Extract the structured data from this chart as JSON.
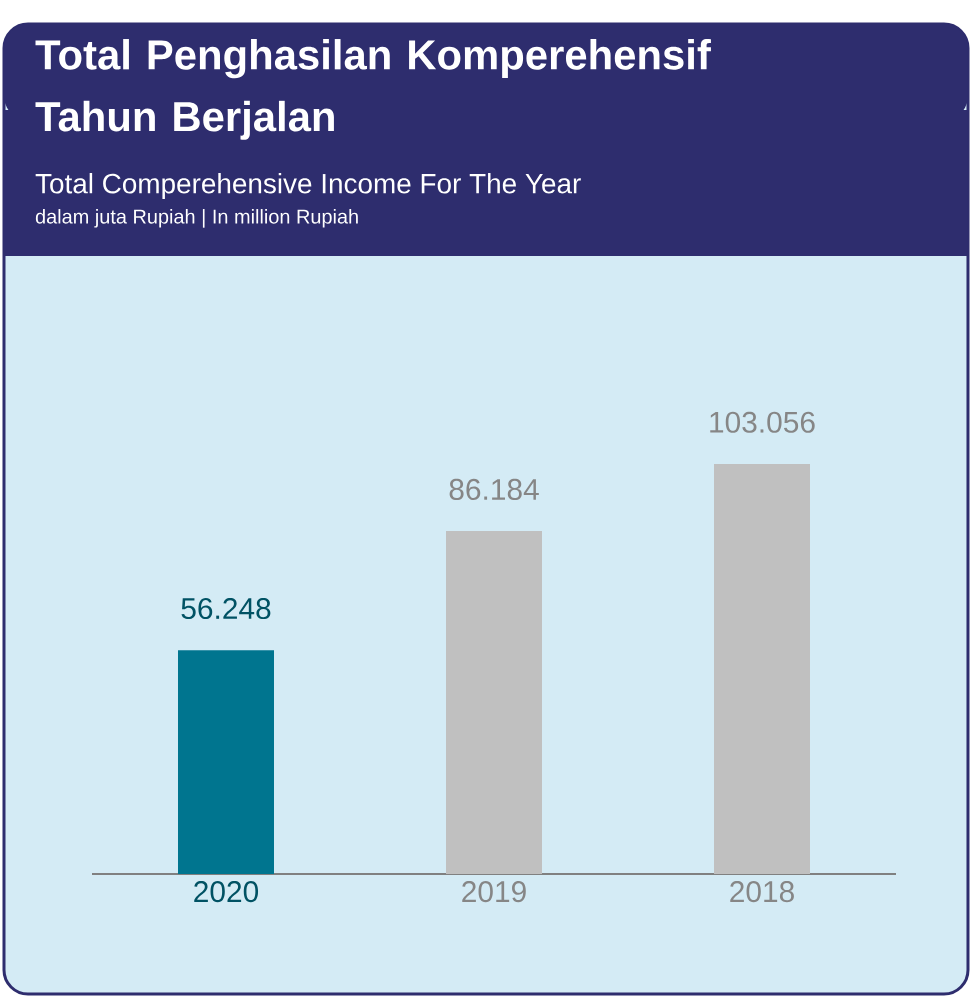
{
  "chart_data": {
    "type": "bar",
    "title": "Total Penghasilan Komperehensif Tahun Berjalan",
    "subtitle": "Total Comperehensive Income For The Year",
    "annotations": [
      "dalam juta Rupiah | In million Rupiah"
    ],
    "categories": [
      "2020",
      "2019",
      "2018"
    ],
    "values": [
      56248,
      86184,
      103056
    ],
    "value_labels": [
      "56.248",
      "86.184",
      "103.056"
    ],
    "colors": [
      "#00758f",
      "#c0c0c0",
      "#c0c0c0"
    ]
  }
}
